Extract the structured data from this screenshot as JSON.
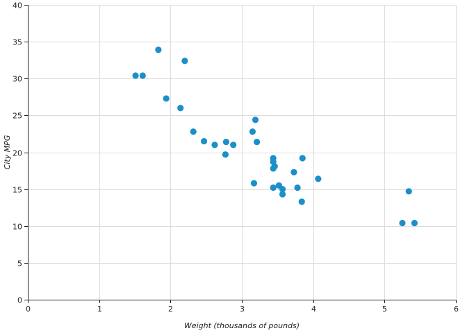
{
  "chart_data": {
    "type": "scatter",
    "title": "",
    "xlabel": "Weight (thousands of pounds)",
    "ylabel": "City MPG",
    "xlim": [
      0,
      6
    ],
    "ylim": [
      0,
      40
    ],
    "x_ticks": [
      0,
      1,
      2,
      3,
      4,
      5,
      6
    ],
    "y_ticks": [
      0,
      5,
      10,
      15,
      20,
      25,
      30,
      35,
      40
    ],
    "x_tick_labels": [
      "0",
      "1",
      "2",
      "3",
      "4",
      "5",
      "6"
    ],
    "y_tick_labels": [
      "0",
      "5",
      "10",
      "15",
      "20",
      "25",
      "30",
      "35",
      "40"
    ],
    "grid": true,
    "legend": "none",
    "point_color": "#1b8fc9",
    "series": [
      {
        "points": [
          {
            "x": 1.51,
            "y": 30.4
          },
          {
            "x": 1.61,
            "y": 30.4
          },
          {
            "x": 1.83,
            "y": 33.9
          },
          {
            "x": 1.94,
            "y": 27.3
          },
          {
            "x": 2.14,
            "y": 26.0
          },
          {
            "x": 2.2,
            "y": 32.4
          },
          {
            "x": 2.32,
            "y": 22.8
          },
          {
            "x": 2.47,
            "y": 21.5
          },
          {
            "x": 2.62,
            "y": 21.0
          },
          {
            "x": 2.77,
            "y": 19.7
          },
          {
            "x": 2.78,
            "y": 21.4
          },
          {
            "x": 2.88,
            "y": 21.0
          },
          {
            "x": 3.15,
            "y": 22.8
          },
          {
            "x": 3.17,
            "y": 15.8
          },
          {
            "x": 3.19,
            "y": 24.4
          },
          {
            "x": 3.21,
            "y": 21.4
          },
          {
            "x": 3.44,
            "y": 19.2
          },
          {
            "x": 3.44,
            "y": 18.7
          },
          {
            "x": 3.44,
            "y": 17.8
          },
          {
            "x": 3.44,
            "y": 15.2
          },
          {
            "x": 3.46,
            "y": 18.1
          },
          {
            "x": 3.52,
            "y": 15.5
          },
          {
            "x": 3.57,
            "y": 14.3
          },
          {
            "x": 3.57,
            "y": 15.0
          },
          {
            "x": 3.73,
            "y": 17.3
          },
          {
            "x": 3.78,
            "y": 15.2
          },
          {
            "x": 3.84,
            "y": 13.3
          },
          {
            "x": 3.85,
            "y": 19.2
          },
          {
            "x": 4.07,
            "y": 16.4
          },
          {
            "x": 5.25,
            "y": 10.4
          },
          {
            "x": 5.34,
            "y": 14.7
          },
          {
            "x": 5.42,
            "y": 10.4
          }
        ]
      }
    ]
  }
}
